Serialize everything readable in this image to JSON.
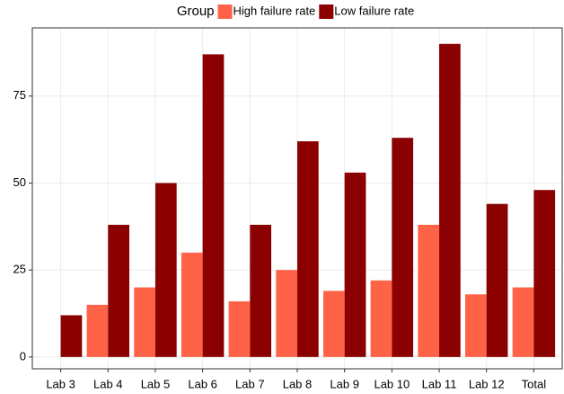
{
  "chart_data": {
    "type": "bar",
    "legend_title": "Group",
    "legend_position": "top",
    "categories": [
      "Lab 3",
      "Lab 4",
      "Lab 5",
      "Lab 6",
      "Lab 7",
      "Lab 8",
      "Lab 9",
      "Lab 10",
      "Lab 11",
      "Lab 12",
      "Total"
    ],
    "series": [
      {
        "name": "High failure rate",
        "color": "#ff6347",
        "values": [
          null,
          15,
          20,
          30,
          16,
          25,
          19,
          22,
          38,
          18,
          20
        ]
      },
      {
        "name": "Low failure rate",
        "color": "#8b0000",
        "values": [
          12,
          38,
          50,
          87,
          38,
          62,
          53,
          63,
          90,
          44,
          48
        ]
      }
    ],
    "ylim": [
      -3.4,
      94.6
    ],
    "yticks": [
      0,
      25,
      50,
      75
    ],
    "grid": true
  }
}
